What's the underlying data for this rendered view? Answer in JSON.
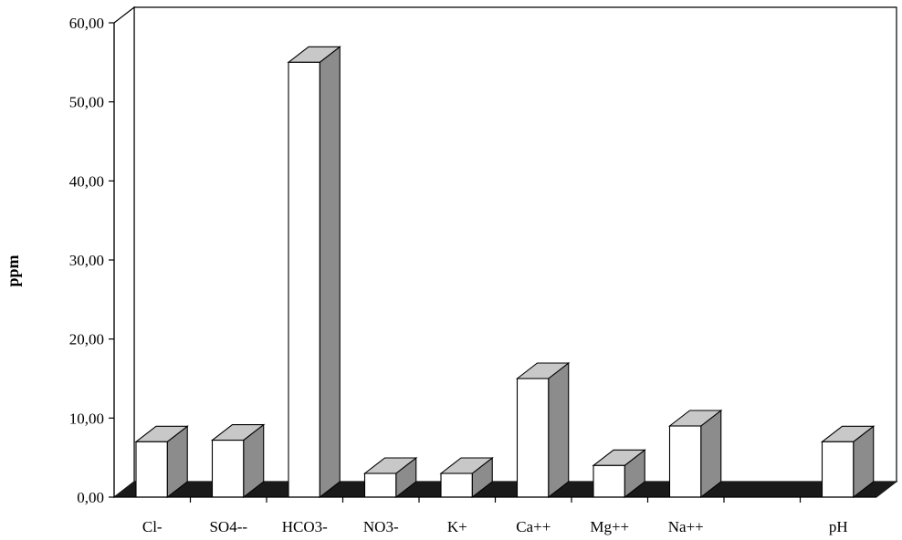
{
  "chart_data": {
    "type": "bar",
    "style": "3d",
    "ylabel": "ppm",
    "xlabel": "",
    "ylim": [
      0,
      60
    ],
    "yticks": [
      "0,00",
      "10,00",
      "20,00",
      "30,00",
      "40,00",
      "50,00",
      "60,00"
    ],
    "categories": [
      "Cl-",
      "SO4--",
      "HCO3-",
      "NO3-",
      "K+",
      "Ca++",
      "Mg++",
      "Na++",
      "",
      "pH"
    ],
    "values": [
      7.0,
      7.2,
      55.0,
      3.0,
      3.0,
      15.0,
      4.0,
      9.0,
      null,
      7.0
    ],
    "grid": false,
    "legend": "none",
    "colors": {
      "bar_front": "#ffffff",
      "bar_top": "#c8c8c8",
      "bar_side": "#8c8c8c",
      "floor": "#1a1a1a",
      "wall": "#ffffff",
      "outline": "#000000"
    }
  }
}
